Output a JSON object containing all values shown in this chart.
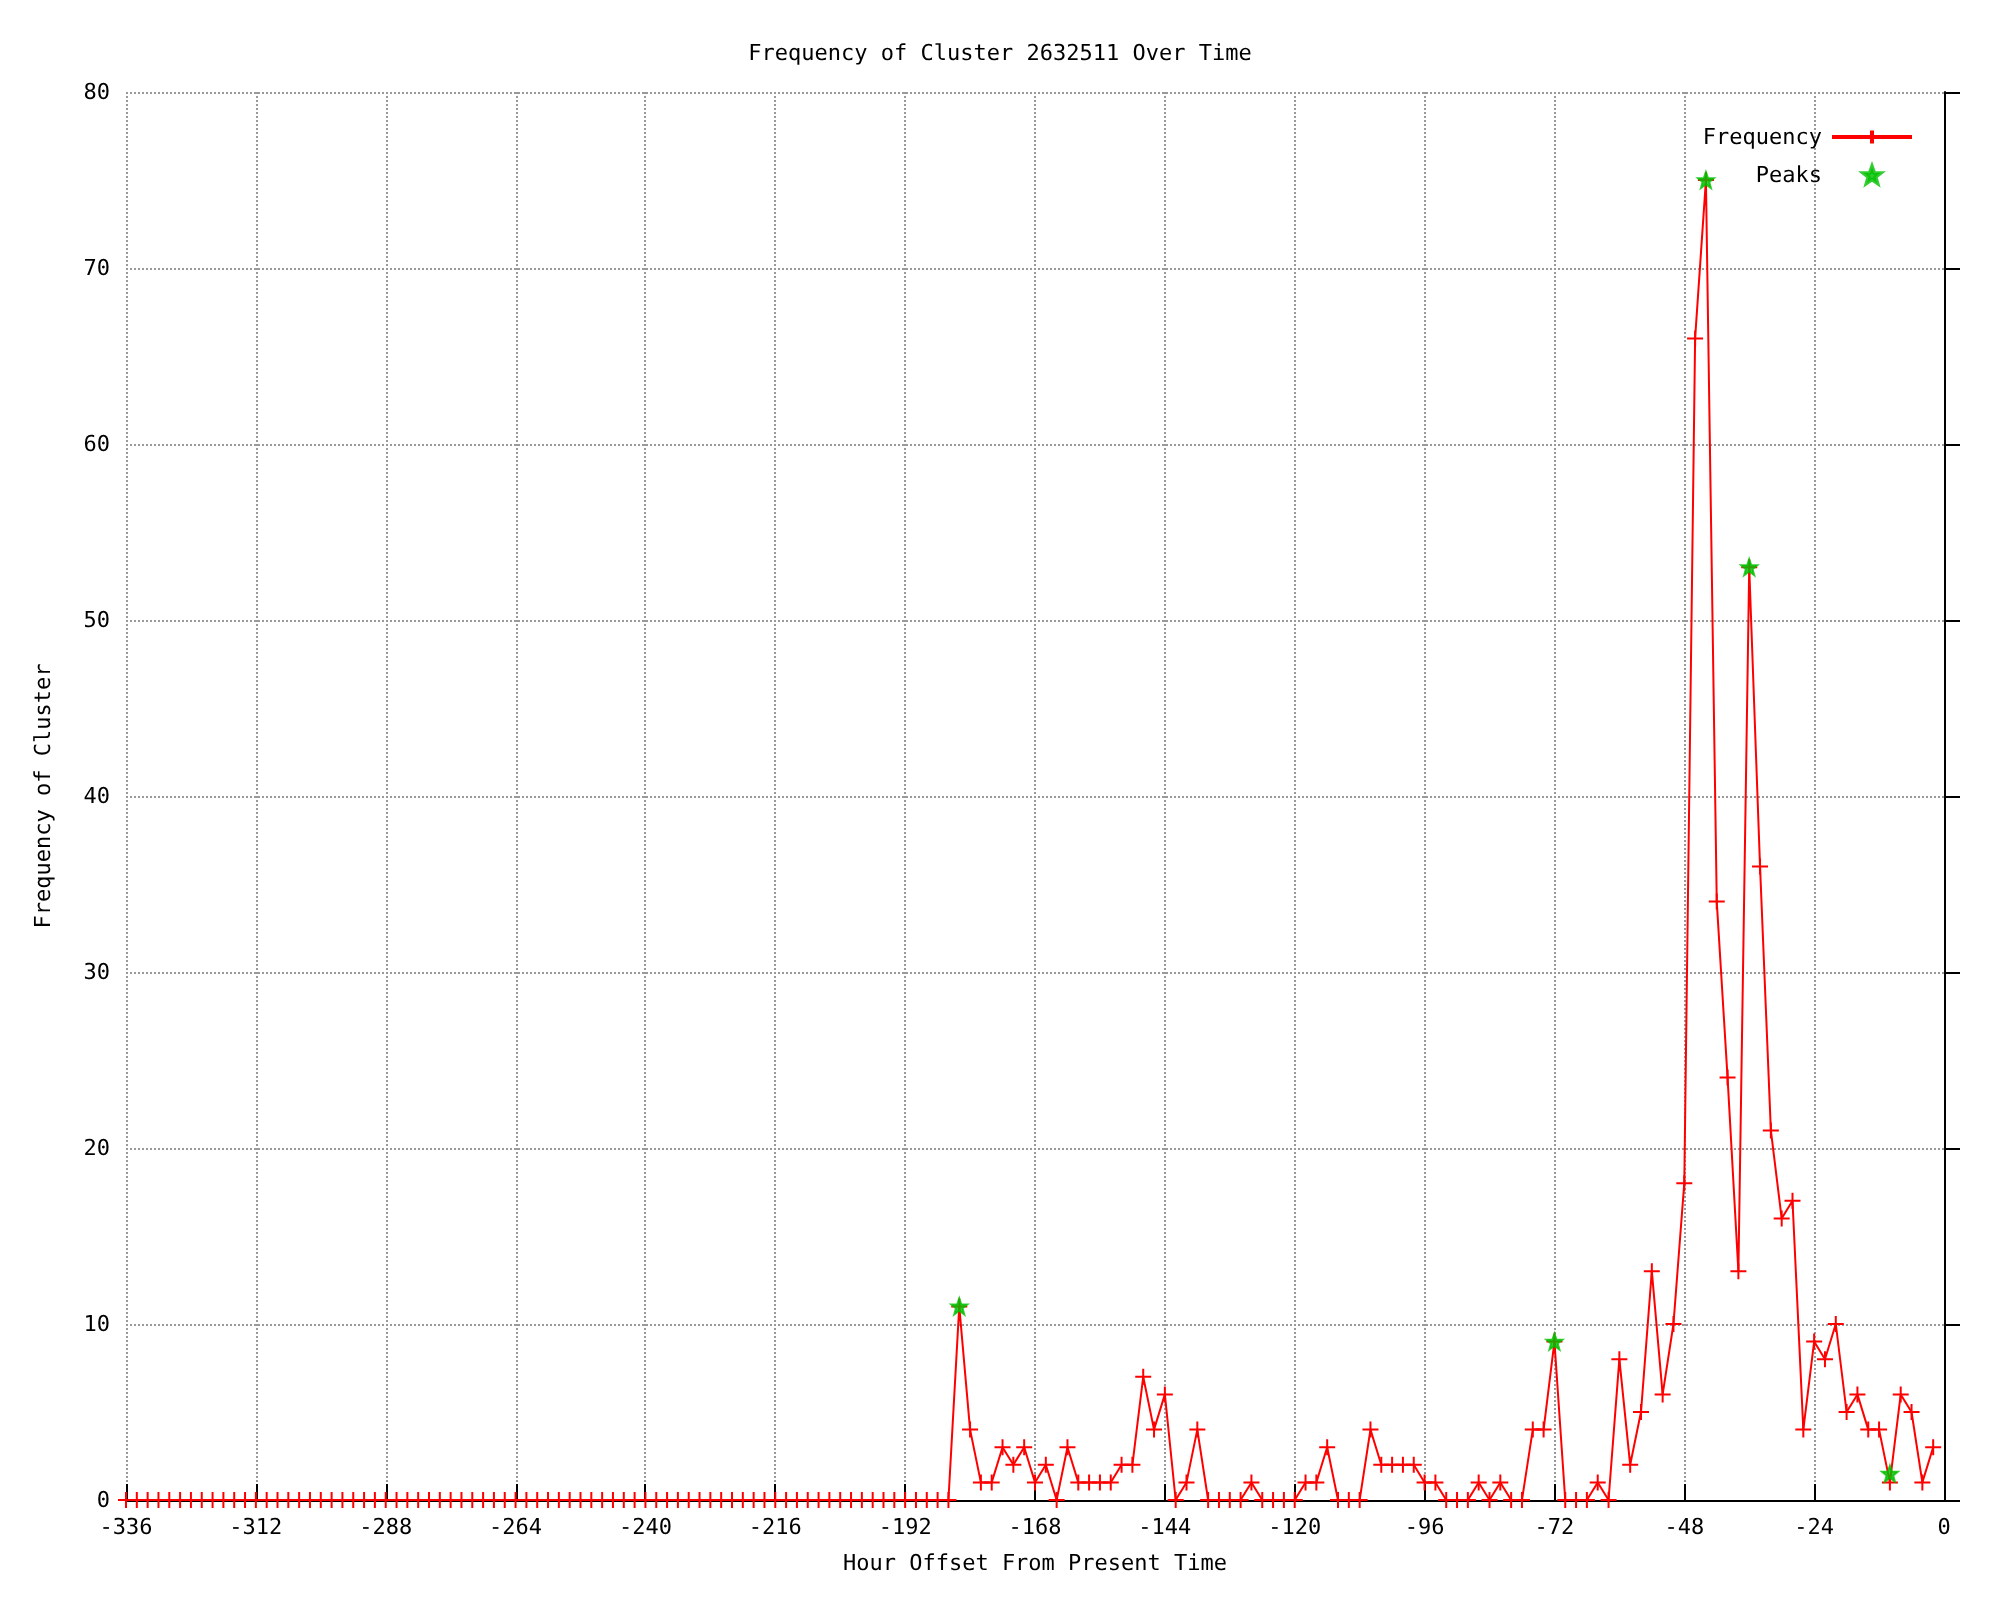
{
  "chart_data": {
    "type": "line",
    "title": "Frequency of Cluster 2632511 Over Time",
    "xlabel": "Hour Offset From Present Time",
    "ylabel": "Frequency of Cluster",
    "xlim": [
      -336,
      0
    ],
    "xticks": [
      -336,
      -312,
      -288,
      -264,
      -240,
      -216,
      -192,
      -168,
      -144,
      -120,
      -96,
      -72,
      -48,
      -24,
      0
    ],
    "ylim": [
      0,
      80
    ],
    "yticks": [
      0,
      10,
      20,
      30,
      40,
      50,
      60,
      70,
      80
    ],
    "grid": true,
    "legend": "top right",
    "marker": "cross",
    "line_style": "solid",
    "series": [
      {
        "name": "Frequency",
        "color": "#ff0000",
        "type": "line",
        "x": [
          -336,
          -334,
          -332,
          -330,
          -328,
          -326,
          -324,
          -322,
          -320,
          -318,
          -316,
          -314,
          -312,
          -310,
          -308,
          -306,
          -304,
          -302,
          -300,
          -298,
          -296,
          -294,
          -292,
          -290,
          -288,
          -286,
          -284,
          -282,
          -280,
          -278,
          -276,
          -274,
          -272,
          -270,
          -268,
          -266,
          -264,
          -262,
          -260,
          -258,
          -256,
          -254,
          -252,
          -250,
          -248,
          -246,
          -244,
          -242,
          -240,
          -238,
          -236,
          -234,
          -232,
          -230,
          -228,
          -226,
          -224,
          -222,
          -220,
          -218,
          -216,
          -214,
          -212,
          -210,
          -208,
          -206,
          -204,
          -202,
          -200,
          -198,
          -196,
          -194,
          -192,
          -190,
          -188,
          -186,
          -184,
          -182,
          -180,
          -178,
          -176,
          -174,
          -172,
          -170,
          -168,
          -166,
          -164,
          -162,
          -160,
          -158,
          -156,
          -154,
          -152,
          -150,
          -148,
          -146,
          -144,
          -142,
          -140,
          -138,
          -136,
          -134,
          -132,
          -130,
          -128,
          -126,
          -124,
          -122,
          -120,
          -118,
          -116,
          -114,
          -112,
          -110,
          -108,
          -106,
          -104,
          -102,
          -100,
          -98,
          -96,
          -94,
          -92,
          -90,
          -88,
          -86,
          -84,
          -82,
          -80,
          -78,
          -76,
          -74,
          -72,
          -70,
          -68,
          -66,
          -64,
          -62,
          -60,
          -58,
          -56,
          -54,
          -52,
          -50,
          -48,
          -46,
          -44,
          -42,
          -40,
          -38,
          -36,
          -34,
          -32,
          -30,
          -28,
          -26,
          -24,
          -22,
          -20,
          -18,
          -16,
          -14,
          -12,
          -10,
          -8,
          -6,
          -4,
          -2
        ],
        "values": [
          0,
          0,
          0,
          0,
          0,
          0,
          0,
          0,
          0,
          0,
          0,
          0,
          0,
          0,
          0,
          0,
          0,
          0,
          0,
          0,
          0,
          0,
          0,
          0,
          0,
          0,
          0,
          0,
          0,
          0,
          0,
          0,
          0,
          0,
          0,
          0,
          0,
          0,
          0,
          0,
          0,
          0,
          0,
          0,
          0,
          0,
          0,
          0,
          0,
          0,
          0,
          0,
          0,
          0,
          0,
          0,
          0,
          0,
          0,
          0,
          0,
          0,
          0,
          0,
          0,
          0,
          0,
          0,
          0,
          0,
          0,
          0,
          0,
          0,
          0,
          0,
          0,
          11,
          4,
          1,
          1,
          3,
          2,
          3,
          1,
          2,
          0,
          3,
          1,
          1,
          1,
          1,
          2,
          2,
          7,
          4,
          6,
          0,
          1,
          4,
          0,
          0,
          0,
          0,
          1,
          0,
          0,
          0,
          0,
          1,
          1,
          3,
          0,
          0,
          0,
          4,
          2,
          2,
          2,
          2,
          1,
          1,
          0,
          0,
          0,
          1,
          0,
          1,
          0,
          0,
          4,
          4,
          9,
          0,
          0,
          0,
          1,
          0,
          8,
          2,
          5,
          13,
          6,
          10,
          18,
          66,
          75,
          34,
          24,
          13,
          53,
          36,
          21,
          16,
          17,
          4,
          9,
          8,
          10,
          5,
          6,
          4,
          4,
          1,
          6,
          5,
          1,
          3
        ]
      },
      {
        "name": "Peaks",
        "color": "#00c000",
        "type": "scatter",
        "marker": "star",
        "x": [
          -182,
          -72,
          -44,
          -36,
          -10
        ],
        "values": [
          11,
          9,
          75,
          53,
          1.5
        ]
      }
    ]
  }
}
